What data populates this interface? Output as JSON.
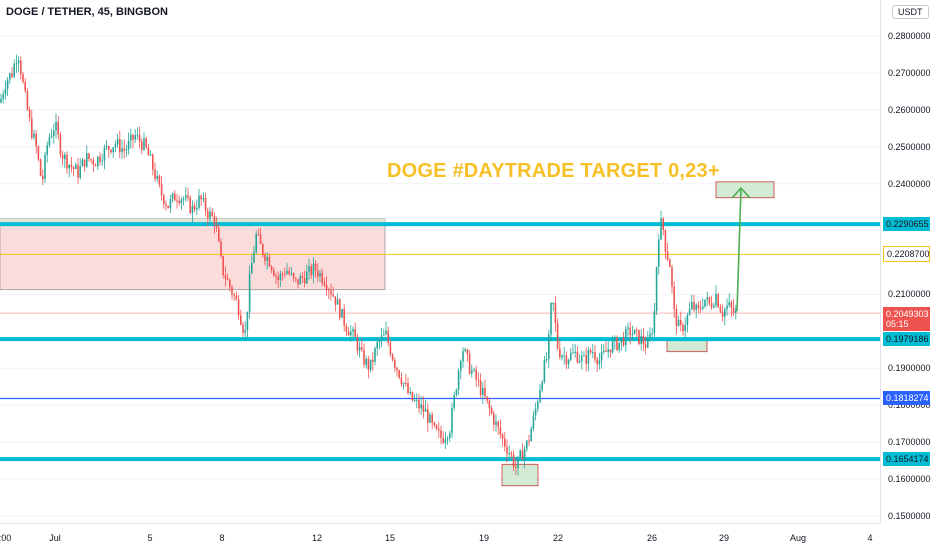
{
  "header": {
    "title": "DOGE / TETHER, 45, BINGBON",
    "currency": "USDT"
  },
  "annotation": "DOGE #DAYTRADE TARGET 0,23+",
  "colors": {
    "up": "#26a69a",
    "down": "#ef5350",
    "cyan_level": "#00bcd4",
    "blue_level": "#2962ff",
    "yellow_level": "#f7c21a",
    "current_price": "#ef5350",
    "zone_fill": "#fcd5d5",
    "box_fill": "#d5ead5",
    "arrow": "#4caf50"
  },
  "price_labels": [
    {
      "text": "0.2290655",
      "kind": "cyan"
    },
    {
      "text": "0.2208700",
      "kind": "yellow"
    },
    {
      "text": "0.2049303",
      "kind": "current",
      "countdown": "05:15"
    },
    {
      "text": "0.1979186",
      "kind": "cyan"
    },
    {
      "text": "0.1818274",
      "kind": "blue"
    },
    {
      "text": "0.1654174",
      "kind": "cyan"
    }
  ],
  "chart_data": {
    "type": "candlestick",
    "title": "DOGE / TETHER, 45, BINGBON",
    "ylim": [
      0.149,
      0.286
    ],
    "y_ticks": [
      "0.2800000",
      "0.2700000",
      "0.2600000",
      "0.2500000",
      "0.2400000",
      "0.2100000",
      "0.1900000",
      "0.1800000",
      "0.1700000",
      "0.1600000",
      "0.1500000"
    ],
    "x_ticks": [
      ":00",
      "Jul",
      "5",
      "8",
      "12",
      "15",
      "19",
      "22",
      "26",
      "29",
      "Aug",
      "4"
    ],
    "horizontal_levels": [
      0.2290655,
      0.22087,
      0.1979186,
      0.1818274,
      0.1654174
    ],
    "current_price": 0.2049303,
    "price_path": [
      [
        0,
        0.262
      ],
      [
        6,
        0.268
      ],
      [
        12,
        0.27
      ],
      [
        18,
        0.276
      ],
      [
        24,
        0.265
      ],
      [
        30,
        0.256
      ],
      [
        36,
        0.25
      ],
      [
        42,
        0.24
      ],
      [
        48,
        0.252
      ],
      [
        55,
        0.256
      ],
      [
        62,
        0.248
      ],
      [
        70,
        0.245
      ],
      [
        78,
        0.243
      ],
      [
        86,
        0.247
      ],
      [
        95,
        0.246
      ],
      [
        105,
        0.249
      ],
      [
        115,
        0.251
      ],
      [
        125,
        0.249
      ],
      [
        135,
        0.253
      ],
      [
        145,
        0.25
      ],
      [
        152,
        0.245
      ],
      [
        160,
        0.238
      ],
      [
        168,
        0.234
      ],
      [
        176,
        0.237
      ],
      [
        184,
        0.236
      ],
      [
        192,
        0.233
      ],
      [
        200,
        0.236
      ],
      [
        208,
        0.232
      ],
      [
        215,
        0.23
      ],
      [
        222,
        0.217
      ],
      [
        230,
        0.212
      ],
      [
        238,
        0.207
      ],
      [
        245,
        0.199
      ],
      [
        250,
        0.215
      ],
      [
        256,
        0.226
      ],
      [
        262,
        0.222
      ],
      [
        270,
        0.219
      ],
      [
        278,
        0.214
      ],
      [
        286,
        0.217
      ],
      [
        295,
        0.213
      ],
      [
        305,
        0.215
      ],
      [
        315,
        0.217
      ],
      [
        325,
        0.214
      ],
      [
        335,
        0.209
      ],
      [
        345,
        0.202
      ],
      [
        355,
        0.198
      ],
      [
        362,
        0.193
      ],
      [
        370,
        0.19
      ],
      [
        378,
        0.197
      ],
      [
        386,
        0.199
      ],
      [
        394,
        0.192
      ],
      [
        402,
        0.187
      ],
      [
        410,
        0.182
      ],
      [
        418,
        0.18
      ],
      [
        426,
        0.178
      ],
      [
        434,
        0.173
      ],
      [
        442,
        0.171
      ],
      [
        450,
        0.174
      ],
      [
        456,
        0.185
      ],
      [
        462,
        0.196
      ],
      [
        470,
        0.19
      ],
      [
        478,
        0.186
      ],
      [
        486,
        0.181
      ],
      [
        494,
        0.176
      ],
      [
        502,
        0.171
      ],
      [
        510,
        0.167
      ],
      [
        516,
        0.163
      ],
      [
        522,
        0.167
      ],
      [
        528,
        0.17
      ],
      [
        535,
        0.178
      ],
      [
        542,
        0.188
      ],
      [
        548,
        0.194
      ],
      [
        552,
        0.21
      ],
      [
        558,
        0.195
      ],
      [
        566,
        0.193
      ],
      [
        575,
        0.194
      ],
      [
        584,
        0.192
      ],
      [
        592,
        0.195
      ],
      [
        600,
        0.192
      ],
      [
        610,
        0.196
      ],
      [
        620,
        0.197
      ],
      [
        630,
        0.2
      ],
      [
        640,
        0.198
      ],
      [
        648,
        0.196
      ],
      [
        654,
        0.203
      ],
      [
        658,
        0.226
      ],
      [
        662,
        0.23
      ],
      [
        666,
        0.222
      ],
      [
        670,
        0.218
      ],
      [
        674,
        0.205
      ],
      [
        680,
        0.2
      ],
      [
        686,
        0.203
      ],
      [
        692,
        0.207
      ],
      [
        698,
        0.205
      ],
      [
        704,
        0.209
      ],
      [
        710,
        0.207
      ],
      [
        716,
        0.21
      ],
      [
        722,
        0.205
      ],
      [
        728,
        0.207
      ],
      [
        734,
        0.205
      ],
      [
        738,
        0.2049303
      ]
    ]
  }
}
